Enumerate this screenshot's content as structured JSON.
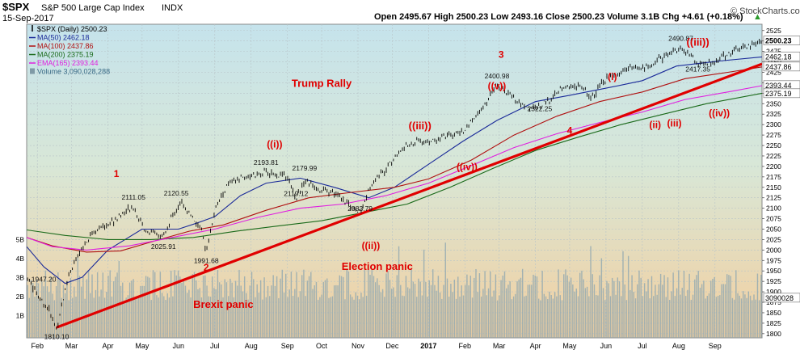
{
  "header": {
    "symbol": "$SPX",
    "name": "S&P 500 Large Cap Index",
    "exchange": "INDX",
    "date": "15-Sep-2017",
    "ohlc": "Open 2495.67  High 2500.23  Low 2493.16  Close 2500.23  Volume 3.1B  Chg +4.61 (+0.18%)",
    "up_arrow": "▲",
    "watermark": "© StockCharts.com"
  },
  "legend": [
    {
      "label": "$SPX (Daily) 2500.23",
      "color": "#000000",
      "marker": "candle"
    },
    {
      "label": "MA(50) 2462.18",
      "color": "#1a2a99",
      "marker": "line"
    },
    {
      "label": "MA(100) 2437.86",
      "color": "#b01010",
      "marker": "line"
    },
    {
      "label": "MA(200) 2375.19",
      "color": "#1a6a1a",
      "marker": "line"
    },
    {
      "label": "EMA(165) 2393.44",
      "color": "#e020e0",
      "marker": "line"
    },
    {
      "label": "Volume 3,090,028,288",
      "color": "#7f9aa6",
      "marker": "bars"
    }
  ],
  "annotations": [
    {
      "text": "1",
      "x": 2016.27,
      "y": 2175
    },
    {
      "text": "2",
      "x": 2016.48,
      "y": 1950
    },
    {
      "text": "3",
      "x": 2017.17,
      "y": 2460
    },
    {
      "text": "4",
      "x": 2017.33,
      "y": 2278
    },
    {
      "text": "((i))",
      "x": 2016.64,
      "y": 2245
    },
    {
      "text": "((ii))",
      "x": 2016.865,
      "y": 2003
    },
    {
      "text": "((iii))",
      "x": 2016.98,
      "y": 2289
    },
    {
      "text": "((iv))",
      "x": 2017.09,
      "y": 2191
    },
    {
      "text": "((v))",
      "x": 2017.16,
      "y": 2384
    },
    {
      "text": "(i)",
      "x": 2017.43,
      "y": 2407
    },
    {
      "text": "(ii)",
      "x": 2017.53,
      "y": 2292
    },
    {
      "text": "(iii)",
      "x": 2017.575,
      "y": 2295
    },
    {
      "text": "((iii))",
      "x": 2017.63,
      "y": 2489
    },
    {
      "text": "((iv))",
      "x": 2017.68,
      "y": 2320
    },
    {
      "text": "Trump Rally",
      "x": 2016.75,
      "y": 2390
    },
    {
      "text": "Election panic",
      "x": 2016.88,
      "y": 1952
    },
    {
      "text": "Brexit panic",
      "x": 2016.52,
      "y": 1862
    }
  ],
  "price_labels": [
    {
      "text": "1810.10",
      "x": 2016.13,
      "y": 1810.1
    },
    {
      "text": "1947.20",
      "x": 2016.1,
      "y": 1947.2
    },
    {
      "text": "2025.91",
      "x": 2016.38,
      "y": 2025.91
    },
    {
      "text": "1991.68",
      "x": 2016.48,
      "y": 1991.68
    },
    {
      "text": "2111.05",
      "x": 2016.31,
      "y": 2111.05
    },
    {
      "text": "2120.55",
      "x": 2016.41,
      "y": 2120.55
    },
    {
      "text": "2193.81",
      "x": 2016.62,
      "y": 2193.81
    },
    {
      "text": "2179.99",
      "x": 2016.71,
      "y": 2179.99
    },
    {
      "text": "2119.12",
      "x": 2016.69,
      "y": 2119.12
    },
    {
      "text": "2083.79",
      "x": 2016.84,
      "y": 2083.79
    },
    {
      "text": "2400.98",
      "x": 2017.16,
      "y": 2400.98
    },
    {
      "text": "2322.25",
      "x": 2017.26,
      "y": 2322.25
    },
    {
      "text": "2490.87",
      "x": 2017.59,
      "y": 2490.87
    },
    {
      "text": "2417.35",
      "x": 2017.63,
      "y": 2417.35
    }
  ],
  "right_badges": [
    {
      "text": "2500.23",
      "y": 2500.23,
      "bg": "#ffffff",
      "fg": "#000000",
      "bold": true
    },
    {
      "text": "2462.18",
      "y": 2462.18,
      "bg": "#ffffff",
      "fg": "#000000",
      "bold": false
    },
    {
      "text": "2437.86",
      "y": 2437.86,
      "bg": "#ffffff",
      "fg": "#000000",
      "bold": false
    },
    {
      "text": "2393.44",
      "y": 2393.44,
      "bg": "#ffffff",
      "fg": "#000000",
      "bold": false
    },
    {
      "text": "2375.19",
      "y": 2375.19,
      "bg": "#ffffff",
      "fg": "#000000",
      "bold": false
    },
    {
      "text": "3090028",
      "y": 1885,
      "bg": "#ffffff",
      "fg": "#000000",
      "bold": false
    }
  ],
  "chart_data": {
    "type": "candlestick",
    "title": "S&P 500 Large Cap Index",
    "x_range": [
      2016.06,
      2017.78
    ],
    "y_range": [
      1790,
      2540
    ],
    "y_ticks": [
      1800,
      1825,
      1850,
      1875,
      1900,
      1925,
      1950,
      1975,
      2000,
      2025,
      2050,
      2075,
      2100,
      2125,
      2150,
      2175,
      2200,
      2225,
      2250,
      2275,
      2300,
      2325,
      2350,
      2375,
      2400,
      2425,
      2450,
      2475,
      2500,
      2525
    ],
    "x_ticks": [
      {
        "label": "Feb",
        "x": 2016.085,
        "bold": false
      },
      {
        "label": "Mar",
        "x": 2016.165,
        "bold": false
      },
      {
        "label": "Apr",
        "x": 2016.25,
        "bold": false
      },
      {
        "label": "May",
        "x": 2016.33,
        "bold": false
      },
      {
        "label": "Jun",
        "x": 2016.415,
        "bold": false
      },
      {
        "label": "Jul",
        "x": 2016.5,
        "bold": false
      },
      {
        "label": "Aug",
        "x": 2016.585,
        "bold": false
      },
      {
        "label": "Sep",
        "x": 2016.67,
        "bold": false
      },
      {
        "label": "Oct",
        "x": 2016.75,
        "bold": false
      },
      {
        "label": "Nov",
        "x": 2016.835,
        "bold": false
      },
      {
        "label": "Dec",
        "x": 2016.915,
        "bold": false
      },
      {
        "label": "2017",
        "x": 2017.0,
        "bold": true
      },
      {
        "label": "Feb",
        "x": 2017.085,
        "bold": false
      },
      {
        "label": "Mar",
        "x": 2017.165,
        "bold": false
      },
      {
        "label": "Apr",
        "x": 2017.25,
        "bold": false
      },
      {
        "label": "May",
        "x": 2017.33,
        "bold": false
      },
      {
        "label": "Jun",
        "x": 2017.415,
        "bold": false
      },
      {
        "label": "Jul",
        "x": 2017.5,
        "bold": false
      },
      {
        "label": "Aug",
        "x": 2017.585,
        "bold": false
      },
      {
        "label": "Sep",
        "x": 2017.67,
        "bold": false
      }
    ],
    "volume_ticks": [
      {
        "label": "1B",
        "billions": 1
      },
      {
        "label": "2B",
        "billions": 2
      },
      {
        "label": "3B",
        "billions": 3
      },
      {
        "label": "4B",
        "billions": 4
      },
      {
        "label": "5B",
        "billions": 5
      }
    ],
    "price_anchors": [
      [
        2016.06,
        1940
      ],
      [
        2016.09,
        1885
      ],
      [
        2016.11,
        1860
      ],
      [
        2016.13,
        1812
      ],
      [
        2016.145,
        1880
      ],
      [
        2016.16,
        1950
      ],
      [
        2016.19,
        2000
      ],
      [
        2016.21,
        2040
      ],
      [
        2016.245,
        2060
      ],
      [
        2016.27,
        2075
      ],
      [
        2016.31,
        2105
      ],
      [
        2016.335,
        2050
      ],
      [
        2016.36,
        2040
      ],
      [
        2016.38,
        2030
      ],
      [
        2016.4,
        2080
      ],
      [
        2016.42,
        2115
      ],
      [
        2016.445,
        2085
      ],
      [
        2016.47,
        2040
      ],
      [
        2016.48,
        1995
      ],
      [
        2016.5,
        2095
      ],
      [
        2016.53,
        2155
      ],
      [
        2016.56,
        2172
      ],
      [
        2016.6,
        2180
      ],
      [
        2016.62,
        2186
      ],
      [
        2016.67,
        2175
      ],
      [
        2016.69,
        2125
      ],
      [
        2016.71,
        2165
      ],
      [
        2016.75,
        2142
      ],
      [
        2016.79,
        2130
      ],
      [
        2016.825,
        2100
      ],
      [
        2016.84,
        2088
      ],
      [
        2016.855,
        2130
      ],
      [
        2016.87,
        2165
      ],
      [
        2016.9,
        2195
      ],
      [
        2016.94,
        2245
      ],
      [
        2016.98,
        2262
      ],
      [
        2017.0,
        2258
      ],
      [
        2017.04,
        2270
      ],
      [
        2017.08,
        2282
      ],
      [
        2017.12,
        2330
      ],
      [
        2017.16,
        2395
      ],
      [
        2017.19,
        2370
      ],
      [
        2017.22,
        2345
      ],
      [
        2017.25,
        2340
      ],
      [
        2017.28,
        2355
      ],
      [
        2017.31,
        2385
      ],
      [
        2017.35,
        2394
      ],
      [
        2017.38,
        2365
      ],
      [
        2017.41,
        2405
      ],
      [
        2017.46,
        2433
      ],
      [
        2017.52,
        2440
      ],
      [
        2017.56,
        2472
      ],
      [
        2017.59,
        2480
      ],
      [
        2017.61,
        2470
      ],
      [
        2017.63,
        2444
      ],
      [
        2017.66,
        2447
      ],
      [
        2017.7,
        2470
      ],
      [
        2017.74,
        2484
      ],
      [
        2017.78,
        2500
      ]
    ],
    "moving_averages": [
      {
        "name": "MA(50)",
        "color": "#1a2a99",
        "points": [
          [
            2016.06,
            2008
          ],
          [
            2016.1,
            1960
          ],
          [
            2016.15,
            1920
          ],
          [
            2016.19,
            1935
          ],
          [
            2016.25,
            2000
          ],
          [
            2016.33,
            2050
          ],
          [
            2016.415,
            2050
          ],
          [
            2016.46,
            2065
          ],
          [
            2016.5,
            2080
          ],
          [
            2016.56,
            2130
          ],
          [
            2016.62,
            2160
          ],
          [
            2016.7,
            2172
          ],
          [
            2016.78,
            2150
          ],
          [
            2016.86,
            2125
          ],
          [
            2016.92,
            2150
          ],
          [
            2017.0,
            2205
          ],
          [
            2017.08,
            2260
          ],
          [
            2017.16,
            2310
          ],
          [
            2017.25,
            2355
          ],
          [
            2017.33,
            2370
          ],
          [
            2017.42,
            2388
          ],
          [
            2017.5,
            2405
          ],
          [
            2017.58,
            2440
          ],
          [
            2017.68,
            2452
          ],
          [
            2017.78,
            2462
          ]
        ]
      },
      {
        "name": "MA(100)",
        "color": "#b01010",
        "points": [
          [
            2016.06,
            2030
          ],
          [
            2016.12,
            2010
          ],
          [
            2016.2,
            1995
          ],
          [
            2016.28,
            1998
          ],
          [
            2016.36,
            2022
          ],
          [
            2016.44,
            2045
          ],
          [
            2016.52,
            2060
          ],
          [
            2016.62,
            2095
          ],
          [
            2016.72,
            2125
          ],
          [
            2016.82,
            2138
          ],
          [
            2016.92,
            2150
          ],
          [
            2017.0,
            2170
          ],
          [
            2017.1,
            2215
          ],
          [
            2017.2,
            2275
          ],
          [
            2017.3,
            2320
          ],
          [
            2017.4,
            2355
          ],
          [
            2017.5,
            2378
          ],
          [
            2017.6,
            2410
          ],
          [
            2017.7,
            2425
          ],
          [
            2017.78,
            2438
          ]
        ]
      },
      {
        "name": "MA(200)",
        "color": "#1a6a1a",
        "points": [
          [
            2016.06,
            2048
          ],
          [
            2016.15,
            2035
          ],
          [
            2016.25,
            2025
          ],
          [
            2016.35,
            2025
          ],
          [
            2016.45,
            2030
          ],
          [
            2016.55,
            2045
          ],
          [
            2016.65,
            2058
          ],
          [
            2016.75,
            2070
          ],
          [
            2016.85,
            2090
          ],
          [
            2016.95,
            2110
          ],
          [
            2017.05,
            2150
          ],
          [
            2017.15,
            2195
          ],
          [
            2017.25,
            2238
          ],
          [
            2017.35,
            2270
          ],
          [
            2017.45,
            2300
          ],
          [
            2017.55,
            2325
          ],
          [
            2017.65,
            2350
          ],
          [
            2017.78,
            2375
          ]
        ]
      },
      {
        "name": "EMA(165)",
        "color": "#e020e0",
        "points": [
          [
            2016.06,
            2030
          ],
          [
            2016.12,
            2008
          ],
          [
            2016.2,
            2000
          ],
          [
            2016.3,
            2010
          ],
          [
            2016.4,
            2030
          ],
          [
            2016.5,
            2050
          ],
          [
            2016.6,
            2078
          ],
          [
            2016.7,
            2100
          ],
          [
            2016.8,
            2110
          ],
          [
            2016.9,
            2130
          ],
          [
            2017.0,
            2160
          ],
          [
            2017.1,
            2202
          ],
          [
            2017.2,
            2245
          ],
          [
            2017.3,
            2278
          ],
          [
            2017.4,
            2305
          ],
          [
            2017.5,
            2330
          ],
          [
            2017.6,
            2360
          ],
          [
            2017.7,
            2378
          ],
          [
            2017.78,
            2393
          ]
        ]
      }
    ],
    "trendline": {
      "color": "#e00000",
      "from": [
        2016.13,
        1815
      ],
      "to": [
        2017.78,
        2445
      ]
    },
    "volume": {
      "typical_billions": 3.0,
      "series_name": "Volume"
    }
  }
}
